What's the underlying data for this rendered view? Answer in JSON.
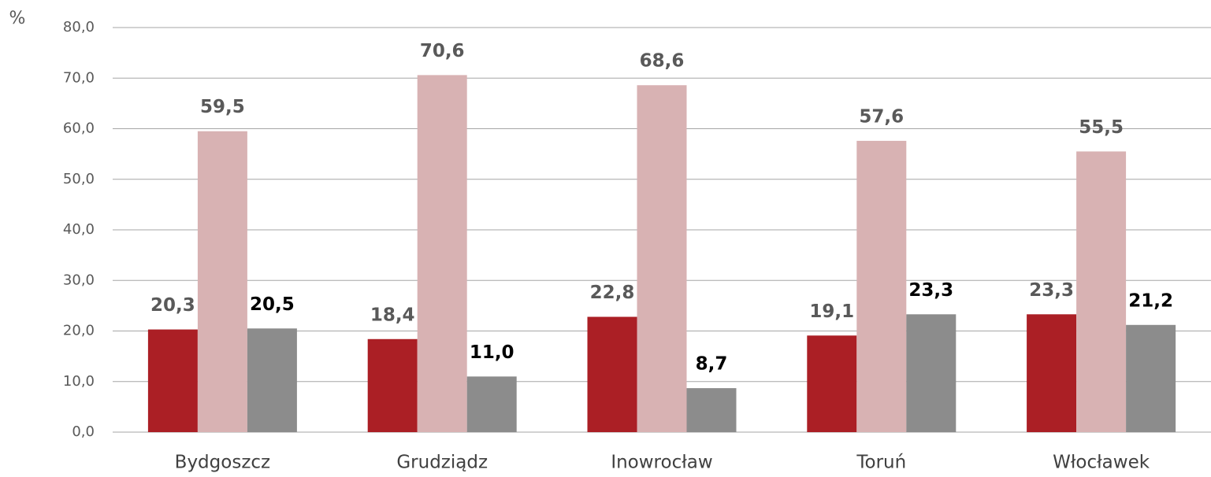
{
  "chart_data": {
    "type": "bar",
    "y_label": "%",
    "categories": [
      "Bydgoszcz",
      "Grudziądz",
      "Inowrocław",
      "Toruń",
      "Włocławek"
    ],
    "series": [
      {
        "color": "#ab1f25",
        "label_color": "#595959",
        "values": [
          20.3,
          18.4,
          22.8,
          19.1,
          23.3
        ],
        "value_labels": [
          "20,3",
          "18,4",
          "22,8",
          "19,1",
          "23,3"
        ]
      },
      {
        "color": "#d8b2b3",
        "label_color": "#595959",
        "values": [
          59.5,
          70.6,
          68.6,
          57.6,
          55.5
        ],
        "value_labels": [
          "59,5",
          "70,6",
          "68,6",
          "57,6",
          "55,5"
        ]
      },
      {
        "color": "#8c8c8c",
        "label_color": "#000000",
        "values": [
          20.5,
          11.0,
          8.7,
          23.3,
          21.2
        ],
        "value_labels": [
          "20,5",
          "11,0",
          "8,7",
          "23,3",
          "21,2"
        ]
      }
    ],
    "ylim": [
      0,
      80
    ],
    "yticks": [
      {
        "value": 0,
        "label": "0,0"
      },
      {
        "value": 10,
        "label": "10,0"
      },
      {
        "value": 20,
        "label": "20,0"
      },
      {
        "value": 30,
        "label": "30,0"
      },
      {
        "value": 40,
        "label": "40,0"
      },
      {
        "value": 50,
        "label": "50,0"
      },
      {
        "value": 60,
        "label": "60,0"
      },
      {
        "value": 70,
        "label": "70,0"
      },
      {
        "value": 80,
        "label": "80,0"
      }
    ],
    "grid": true
  }
}
